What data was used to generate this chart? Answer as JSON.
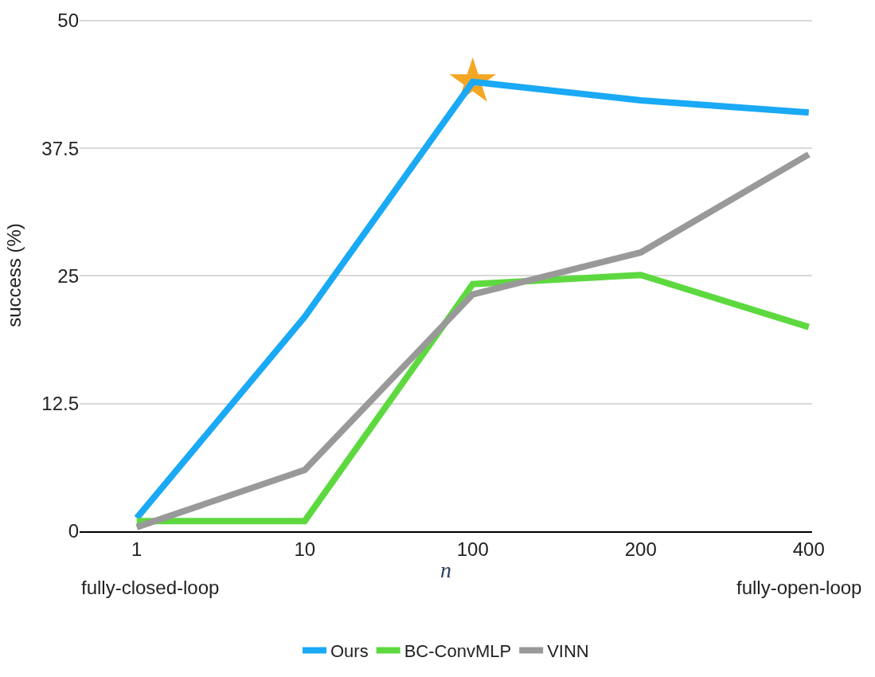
{
  "chart_data": {
    "type": "line",
    "xlabel": "n",
    "ylabel": "success (%)",
    "categories": [
      "1",
      "10",
      "100",
      "200",
      "400"
    ],
    "series": [
      {
        "name": "Ours",
        "color": "#1aa9f5",
        "values": [
          1.3,
          21,
          44,
          42.2,
          41
        ]
      },
      {
        "name": "BC-ConvMLP",
        "color": "#5dd93f",
        "values": [
          1,
          1,
          24.2,
          25.1,
          20
        ]
      },
      {
        "name": "VINN",
        "color": "#999999",
        "values": [
          0.4,
          6,
          23.2,
          27.3,
          36.9
        ]
      },
      {
        "type": "scatter",
        "marker": "star",
        "color": "#f5a623",
        "x": [
          "100"
        ],
        "values": [
          44
        ]
      }
    ],
    "ylim": [
      0,
      50
    ],
    "yticks": [
      0,
      12.5,
      25,
      37.5,
      50
    ],
    "grid": "y",
    "legend": "bottom",
    "marker": "none",
    "annotations": [
      "fully-closed-loop",
      "fully-open-loop"
    ]
  }
}
